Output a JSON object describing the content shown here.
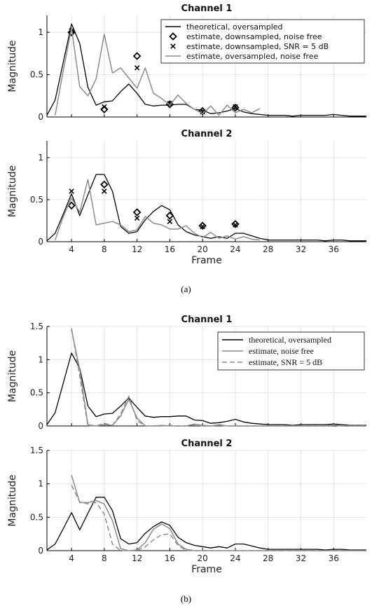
{
  "figure": {
    "caption_a": "(a)",
    "caption_b": "(b)"
  },
  "colors": {
    "theoretical": "#000000",
    "noise_free": "#8c8c8c",
    "snr": "#8c8c8c",
    "grid": "#e3e3e3",
    "axis": "#000000"
  },
  "chart_data": [
    {
      "id": "a1",
      "type": "line",
      "title": "Channel 1",
      "xlabel": "",
      "ylabel": "Magnitude",
      "xlim": [
        1,
        40
      ],
      "ylim": [
        0,
        1.2
      ],
      "xticks": [
        4,
        8,
        12,
        16,
        20,
        24,
        28,
        32,
        36
      ],
      "yticks": [
        0,
        0.5,
        1
      ],
      "ytick_labels": [
        "0",
        "0.5",
        "1"
      ],
      "show_xtick_labels": false,
      "grid": true,
      "legend": "top-right",
      "series": [
        {
          "name": "theoretical, oversampled",
          "kind": "line",
          "color": "#000000",
          "dash": "",
          "x": [
            1,
            2,
            3,
            4,
            5,
            6,
            7,
            8,
            9,
            10,
            11,
            12,
            13,
            14,
            15,
            16,
            17,
            18,
            19,
            20,
            21,
            22,
            23,
            24,
            25,
            26,
            27,
            28,
            29,
            30,
            31,
            32,
            33,
            34,
            35,
            36,
            37,
            38,
            39,
            40
          ],
          "y": [
            0.02,
            0.2,
            0.65,
            1.1,
            0.87,
            0.35,
            0.14,
            0.18,
            0.19,
            0.3,
            0.39,
            0.28,
            0.15,
            0.13,
            0.14,
            0.14,
            0.15,
            0.15,
            0.09,
            0.08,
            0.04,
            0.05,
            0.07,
            0.1,
            0.06,
            0.04,
            0.03,
            0.02,
            0.02,
            0.02,
            0.01,
            0.02,
            0.02,
            0.02,
            0.02,
            0.03,
            0.02,
            0.01,
            0.01,
            0.01
          ]
        },
        {
          "name": "estimate, downsampled, noise free",
          "kind": "diamond",
          "color": "#000000",
          "x": [
            4,
            8,
            12,
            16,
            20,
            24
          ],
          "y": [
            1.0,
            0.09,
            0.72,
            0.15,
            0.07,
            0.11
          ]
        },
        {
          "name": "estimate, downsampled, SNR = 5 dB",
          "kind": "cross",
          "color": "#000000",
          "x": [
            4,
            8,
            12,
            16,
            20,
            24
          ],
          "y": [
            1.02,
            0.12,
            0.58,
            0.16,
            0.06,
            0.12
          ]
        },
        {
          "name": "estimate, oversampled, noise free",
          "kind": "line",
          "color": "#8c8c8c",
          "dash": "",
          "x": [
            2,
            3,
            4,
            5,
            6,
            7,
            8,
            9,
            10,
            11,
            12,
            13,
            14,
            15,
            16,
            17,
            18,
            19,
            20,
            21,
            22,
            23,
            24,
            25,
            26,
            27
          ],
          "y": [
            0.02,
            0.55,
            1.05,
            0.36,
            0.25,
            0.45,
            0.98,
            0.52,
            0.58,
            0.46,
            0.34,
            0.58,
            0.28,
            0.22,
            0.14,
            0.26,
            0.16,
            0.09,
            0.04,
            0.13,
            0.02,
            0.14,
            0.05,
            0.09,
            0.05,
            0.1
          ]
        }
      ]
    },
    {
      "id": "a2",
      "type": "line",
      "title": "Channel 2",
      "xlabel": "Frame",
      "ylabel": "Magnitude",
      "xlim": [
        1,
        40
      ],
      "ylim": [
        0,
        1.2
      ],
      "xticks": [
        4,
        8,
        12,
        16,
        20,
        24,
        28,
        32,
        36
      ],
      "yticks": [
        0,
        0.5,
        1
      ],
      "ytick_labels": [
        "0",
        "0.5",
        "1"
      ],
      "show_xtick_labels": true,
      "grid": true,
      "legend": "none",
      "series": [
        {
          "kind": "line",
          "color": "#000000",
          "dash": "",
          "x": [
            1,
            2,
            3,
            4,
            5,
            6,
            7,
            8,
            9,
            10,
            11,
            12,
            13,
            14,
            15,
            16,
            17,
            18,
            19,
            20,
            21,
            22,
            23,
            24,
            25,
            26,
            27,
            28,
            29,
            30,
            31,
            32,
            33,
            34,
            35,
            36,
            37,
            38,
            39,
            40
          ],
          "y": [
            0.01,
            0.1,
            0.33,
            0.57,
            0.31,
            0.56,
            0.8,
            0.8,
            0.6,
            0.18,
            0.1,
            0.12,
            0.26,
            0.36,
            0.43,
            0.38,
            0.2,
            0.12,
            0.08,
            0.06,
            0.04,
            0.06,
            0.04,
            0.1,
            0.1,
            0.07,
            0.04,
            0.02,
            0.02,
            0.02,
            0.02,
            0.02,
            0.02,
            0.02,
            0.01,
            0.02,
            0.02,
            0.01,
            0.01,
            0.01
          ]
        },
        {
          "kind": "diamond",
          "color": "#000000",
          "x": [
            4,
            8,
            12,
            16,
            20,
            24
          ],
          "y": [
            0.43,
            0.68,
            0.35,
            0.31,
            0.19,
            0.21
          ]
        },
        {
          "kind": "cross",
          "color": "#000000",
          "x": [
            4,
            8,
            12,
            16,
            20,
            24
          ],
          "y": [
            0.6,
            0.6,
            0.28,
            0.24,
            0.18,
            0.2
          ]
        },
        {
          "kind": "line",
          "color": "#8c8c8c",
          "dash": "",
          "x": [
            2,
            3,
            4,
            5,
            6,
            7,
            8,
            9,
            10,
            11,
            12,
            13,
            14,
            15,
            16,
            17,
            18,
            19,
            20,
            21,
            22,
            23,
            24,
            25,
            26,
            27
          ],
          "y": [
            0.02,
            0.3,
            0.52,
            0.35,
            0.74,
            0.2,
            0.22,
            0.24,
            0.2,
            0.12,
            0.14,
            0.3,
            0.22,
            0.2,
            0.15,
            0.15,
            0.19,
            0.1,
            0.05,
            0.11,
            0.04,
            0.07,
            0.03,
            0.06,
            0.03,
            0.02
          ]
        }
      ]
    },
    {
      "id": "b1",
      "type": "line",
      "title": "Channel 1",
      "xlabel": "",
      "ylabel": "Magnitude",
      "xlim": [
        1,
        40
      ],
      "ylim": [
        0,
        1.5
      ],
      "xticks": [
        4,
        8,
        12,
        16,
        20,
        24,
        28,
        32,
        36
      ],
      "yticks": [
        0,
        0.5,
        1,
        1.5
      ],
      "ytick_labels": [
        "0",
        "0.5",
        "1",
        "1.5"
      ],
      "show_xtick_labels": false,
      "grid": true,
      "legend": "top-right",
      "series": [
        {
          "name": "theoretical, oversampled",
          "kind": "line",
          "color": "#000000",
          "dash": "",
          "x": [
            1,
            2,
            3,
            4,
            5,
            6,
            7,
            8,
            9,
            10,
            11,
            12,
            13,
            14,
            15,
            16,
            17,
            18,
            19,
            20,
            21,
            22,
            23,
            24,
            25,
            26,
            27,
            28,
            29,
            30,
            31,
            32,
            33,
            34,
            35,
            36,
            37,
            38,
            39,
            40
          ],
          "y": [
            0.02,
            0.2,
            0.65,
            1.1,
            0.87,
            0.3,
            0.14,
            0.18,
            0.19,
            0.3,
            0.42,
            0.28,
            0.15,
            0.13,
            0.14,
            0.14,
            0.15,
            0.15,
            0.09,
            0.08,
            0.04,
            0.05,
            0.07,
            0.1,
            0.06,
            0.04,
            0.03,
            0.02,
            0.02,
            0.02,
            0.01,
            0.02,
            0.02,
            0.02,
            0.02,
            0.03,
            0.02,
            0.01,
            0.01,
            0.01
          ]
        },
        {
          "name": "estimate, noise free",
          "kind": "line",
          "color": "#8c8c8c",
          "dash": "",
          "x": [
            4,
            5,
            6,
            7,
            8,
            9,
            10,
            11,
            12,
            13,
            14,
            15,
            16,
            17,
            18,
            19,
            20,
            21,
            22,
            23,
            24,
            25,
            26,
            27,
            28,
            29,
            30,
            31,
            32,
            33,
            34,
            35,
            36,
            37,
            38,
            39,
            40
          ],
          "y": [
            1.45,
            0.85,
            0.02,
            0.0,
            0.02,
            0.01,
            0.15,
            0.4,
            0.12,
            0.0,
            0.0,
            0.01,
            0.0,
            0.0,
            0.0,
            0.03,
            0.01,
            0.0,
            0.02,
            0.0,
            0.0,
            0.0,
            0.0,
            0.0,
            0.0,
            0.0,
            0.0,
            0.0,
            0.0,
            0.0,
            0.0,
            0.0,
            0.02,
            0.0,
            0.0,
            0.0,
            0.0
          ]
        },
        {
          "name": "estimate, SNR = 5 dB",
          "kind": "line",
          "color": "#8c8c8c",
          "dash": "7,4",
          "x": [
            4,
            5,
            6,
            7,
            8,
            9,
            10,
            11,
            12,
            13,
            14,
            15,
            16,
            17,
            18,
            19,
            20,
            21,
            22,
            23,
            24,
            25,
            26,
            27,
            28,
            29,
            30,
            31,
            32,
            33,
            34,
            35,
            36,
            37,
            38,
            39,
            40
          ],
          "y": [
            1.47,
            0.75,
            0.0,
            0.0,
            0.04,
            0.01,
            0.18,
            0.45,
            0.08,
            0.0,
            0.0,
            0.0,
            0.01,
            0.0,
            0.0,
            0.02,
            0.0,
            0.0,
            0.01,
            0.0,
            0.0,
            0.0,
            0.0,
            0.0,
            0.0,
            0.0,
            0.0,
            0.0,
            0.0,
            0.0,
            0.0,
            0.0,
            0.01,
            0.0,
            0.0,
            0.0,
            0.0
          ]
        }
      ]
    },
    {
      "id": "b2",
      "type": "line",
      "title": "Channel 2",
      "xlabel": "Frame",
      "ylabel": "Magnitude",
      "xlim": [
        1,
        40
      ],
      "ylim": [
        0,
        1.5
      ],
      "xticks": [
        4,
        8,
        12,
        16,
        20,
        24,
        28,
        32,
        36
      ],
      "yticks": [
        0,
        0.5,
        1,
        1.5
      ],
      "ytick_labels": [
        "0",
        "0.5",
        "1",
        "1.5"
      ],
      "show_xtick_labels": true,
      "grid": true,
      "legend": "none",
      "series": [
        {
          "kind": "line",
          "color": "#000000",
          "dash": "",
          "x": [
            1,
            2,
            3,
            4,
            5,
            6,
            7,
            8,
            9,
            10,
            11,
            12,
            13,
            14,
            15,
            16,
            17,
            18,
            19,
            20,
            21,
            22,
            23,
            24,
            25,
            26,
            27,
            28,
            29,
            30,
            31,
            32,
            33,
            34,
            35,
            36,
            37,
            38,
            39,
            40
          ],
          "y": [
            0.01,
            0.1,
            0.33,
            0.57,
            0.31,
            0.56,
            0.8,
            0.8,
            0.6,
            0.18,
            0.1,
            0.12,
            0.26,
            0.36,
            0.43,
            0.38,
            0.2,
            0.12,
            0.08,
            0.06,
            0.04,
            0.06,
            0.04,
            0.1,
            0.1,
            0.07,
            0.04,
            0.02,
            0.02,
            0.02,
            0.02,
            0.02,
            0.02,
            0.02,
            0.01,
            0.02,
            0.02,
            0.01,
            0.01,
            0.01
          ]
        },
        {
          "kind": "line",
          "color": "#8c8c8c",
          "dash": "",
          "x": [
            4,
            5,
            6,
            7,
            8,
            9,
            10,
            11,
            12,
            13,
            14,
            15,
            16,
            17,
            18,
            19,
            20,
            21,
            22,
            23,
            24,
            25,
            26,
            27,
            28,
            29,
            30,
            31,
            32,
            33,
            34,
            35,
            36,
            37,
            38,
            39,
            40
          ],
          "y": [
            1.13,
            0.72,
            0.72,
            0.75,
            0.7,
            0.45,
            0.03,
            0.0,
            0.01,
            0.12,
            0.32,
            0.4,
            0.33,
            0.1,
            0.02,
            0.0,
            0.0,
            0.0,
            0.0,
            0.0,
            0.0,
            0.0,
            0.0,
            0.0,
            0.0,
            0.0,
            0.0,
            0.0,
            0.0,
            0.0,
            0.0,
            0.0,
            0.0,
            0.0,
            0.0,
            0.0,
            0.0
          ]
        },
        {
          "kind": "line",
          "color": "#8c8c8c",
          "dash": "7,4",
          "x": [
            4,
            5,
            6,
            7,
            8,
            9,
            10,
            11,
            12,
            13,
            14,
            15,
            16,
            17,
            18,
            19,
            20,
            21,
            22,
            23,
            24,
            25,
            26,
            27,
            28,
            29,
            30,
            31,
            32,
            33,
            34,
            35,
            36,
            37,
            38,
            39,
            40
          ],
          "y": [
            0.98,
            0.73,
            0.7,
            0.72,
            0.55,
            0.1,
            0.0,
            0.0,
            0.0,
            0.06,
            0.16,
            0.24,
            0.25,
            0.08,
            0.0,
            0.0,
            0.0,
            0.0,
            0.0,
            0.0,
            0.0,
            0.0,
            0.0,
            0.0,
            0.0,
            0.0,
            0.0,
            0.0,
            0.0,
            0.0,
            0.0,
            0.0,
            0.0,
            0.0,
            0.0,
            0.0,
            0.0
          ]
        }
      ]
    }
  ]
}
